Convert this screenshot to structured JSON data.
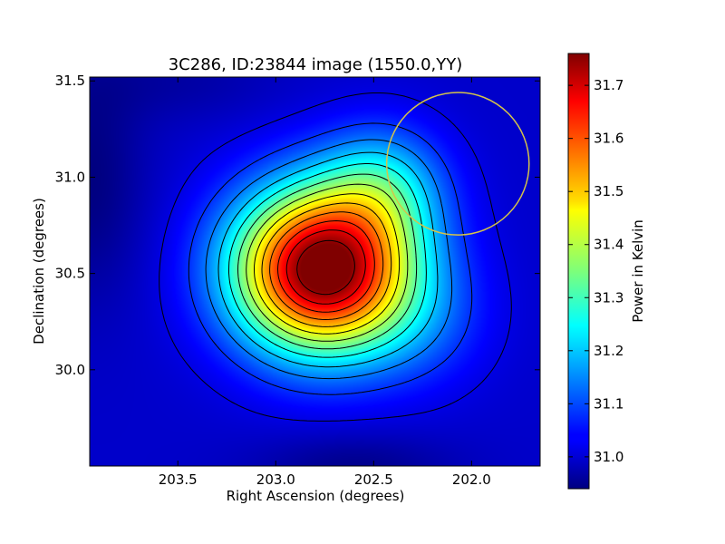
{
  "chart_data": {
    "type": "heatmap",
    "title": "3C286, ID:23844 image (1550.0,YY)",
    "xlabel": "Right Ascension (degrees)",
    "ylabel": "Declination (degrees)",
    "colorbar_label": "Power in Kelvin",
    "colormap": "jet",
    "x_inverted": true,
    "xlim": [
      203.95,
      201.65
    ],
    "ylim": [
      29.5,
      31.52
    ],
    "xticks": [
      {
        "value": 203.5,
        "label": "203.5"
      },
      {
        "value": 203.0,
        "label": "203.0"
      },
      {
        "value": 202.5,
        "label": "202.5"
      },
      {
        "value": 202.0,
        "label": "202.0"
      }
    ],
    "yticks": [
      {
        "value": 30.0,
        "label": "30.0"
      },
      {
        "value": 30.5,
        "label": "30.5"
      },
      {
        "value": 31.0,
        "label": "31.0"
      },
      {
        "value": 31.5,
        "label": "31.5"
      }
    ],
    "clim": [
      30.94,
      31.76
    ],
    "colorbar_ticks": [
      {
        "value": 31.0,
        "label": "31.0"
      },
      {
        "value": 31.1,
        "label": "31.1"
      },
      {
        "value": 31.2,
        "label": "31.2"
      },
      {
        "value": 31.3,
        "label": "31.3"
      },
      {
        "value": 31.4,
        "label": "31.4"
      },
      {
        "value": 31.5,
        "label": "31.5"
      },
      {
        "value": 31.6,
        "label": "31.6"
      },
      {
        "value": 31.7,
        "label": "31.7"
      }
    ],
    "peak": {
      "ra": 202.76,
      "dec": 30.52,
      "value": 31.75
    },
    "contour_levels": [
      31.02,
      31.08,
      31.14,
      31.2,
      31.26,
      31.32,
      31.38,
      31.44,
      31.5,
      31.56,
      31.62,
      31.68,
      31.74
    ],
    "beam_circle": {
      "ra": 202.07,
      "dec": 31.07,
      "radius_deg": 0.37,
      "color": "#d4c34a"
    },
    "contour_color": "#000000"
  }
}
